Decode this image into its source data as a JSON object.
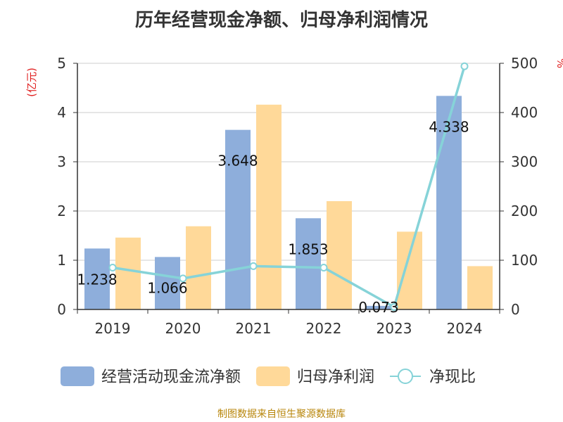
{
  "chart_data": {
    "type": "bar",
    "title": "历年经营现金净额、归母净利润情况",
    "categories": [
      "2019",
      "2020",
      "2021",
      "2022",
      "2023",
      "2024"
    ],
    "series": [
      {
        "name": "经营活动现金流净额",
        "kind": "bar",
        "axis": "left",
        "color": "#8eaedb",
        "values": [
          1.238,
          1.066,
          3.648,
          1.853,
          0.073,
          4.338
        ]
      },
      {
        "name": "归母净利润",
        "kind": "bar",
        "axis": "left",
        "color": "#ffd999",
        "values": [
          1.46,
          1.69,
          4.16,
          2.2,
          1.58,
          0.88
        ]
      },
      {
        "name": "净现比",
        "kind": "line",
        "axis": "right",
        "color": "#86d3d8",
        "values": [
          85,
          63,
          88,
          85,
          5,
          494
        ]
      }
    ],
    "data_labels": [
      "1.238",
      "1.066",
      "3.648",
      "1.853",
      "0.073",
      "4.338"
    ],
    "y_left": {
      "label": "(亿元)",
      "ticks": [
        "0",
        "1",
        "2",
        "3",
        "4",
        "5"
      ],
      "ylim": [
        0,
        5
      ]
    },
    "y_right": {
      "label": "%",
      "ticks": [
        "0",
        "100",
        "200",
        "300",
        "400",
        "500"
      ],
      "ylim": [
        0,
        500
      ]
    },
    "grid": true,
    "legend_position": "bottom"
  },
  "source": "制图数据来自恒生聚源数据库"
}
